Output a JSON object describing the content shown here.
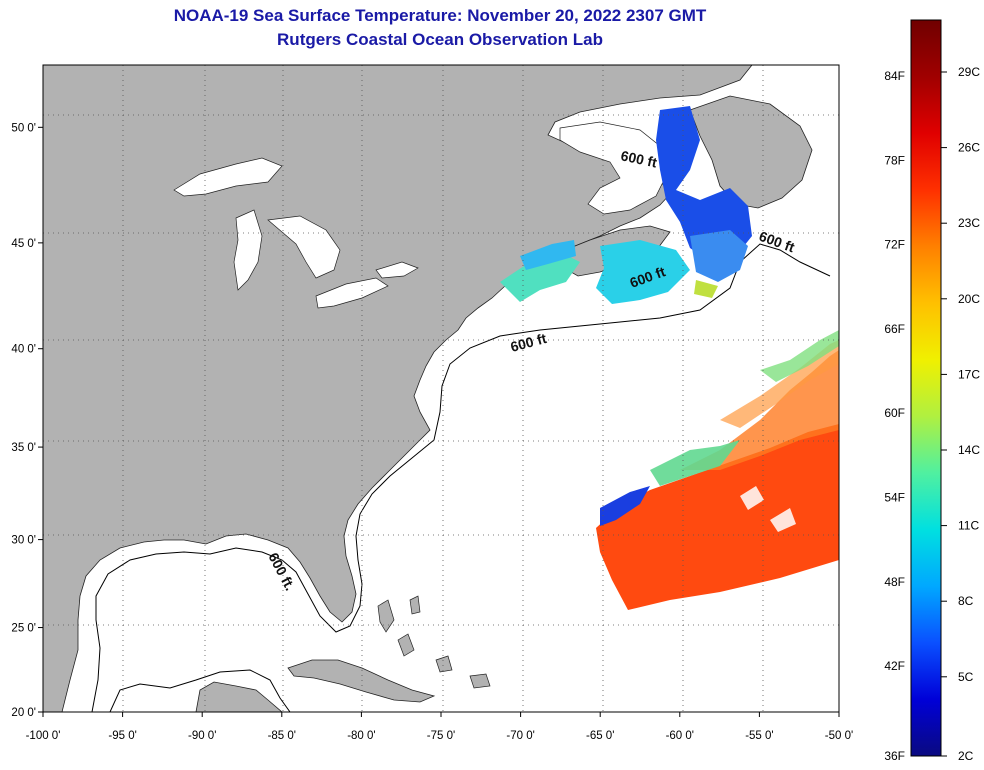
{
  "title": {
    "line1": "NOAA-19 Sea Surface Temperature:  November 20, 2022 2307 GMT",
    "line2": "Rutgers Coastal Ocean Observation Lab"
  },
  "axes": {
    "lon_min": -100,
    "lon_max": -50,
    "lat_min": 20,
    "lat_max": 52.5,
    "x_ticks": [
      "-100 0'",
      "-95 0'",
      "-90 0'",
      "-85 0'",
      "-80 0'",
      "-75 0'",
      "-70 0'",
      "-65 0'",
      "-60 0'",
      "-55 0'",
      "-50 0'"
    ],
    "x_tick_values": [
      -100,
      -95,
      -90,
      -85,
      -80,
      -75,
      -70,
      -65,
      -60,
      -55,
      -50
    ],
    "y_ticks": [
      "20 0'",
      "25 0'",
      "30 0'",
      "35 0'",
      "40 0'",
      "45 0'",
      "50 0'"
    ],
    "y_tick_values": [
      20,
      25,
      30,
      35,
      40,
      45,
      50
    ],
    "grid": "dotted"
  },
  "depth_contour": {
    "labels": [
      "600 ft",
      "600 ft",
      "600 ft",
      "600 ft.",
      "600 ft"
    ]
  },
  "colorbar": {
    "fahrenheit": [
      "84F",
      "78F",
      "72F",
      "66F",
      "60F",
      "54F",
      "48F",
      "42F",
      "36F"
    ],
    "celsius": [
      "29C",
      "26C",
      "23C",
      "20C",
      "17C",
      "14C",
      "11C",
      "8C",
      "5C",
      "2C"
    ],
    "colors": [
      "#0a0a80",
      "#0000d8",
      "#0a50ff",
      "#00a8ff",
      "#00e0e0",
      "#50f0a0",
      "#b0f040",
      "#f0f000",
      "#ffc000",
      "#ff8000",
      "#ff3000",
      "#e00000",
      "#a00000",
      "#700000"
    ]
  },
  "colors": {
    "land": "#b2b2b2",
    "ocean": "#ffffff",
    "title": "#1a1aa6",
    "sst_warm": "#ff4a10",
    "sst_cold": "#1040e0"
  }
}
